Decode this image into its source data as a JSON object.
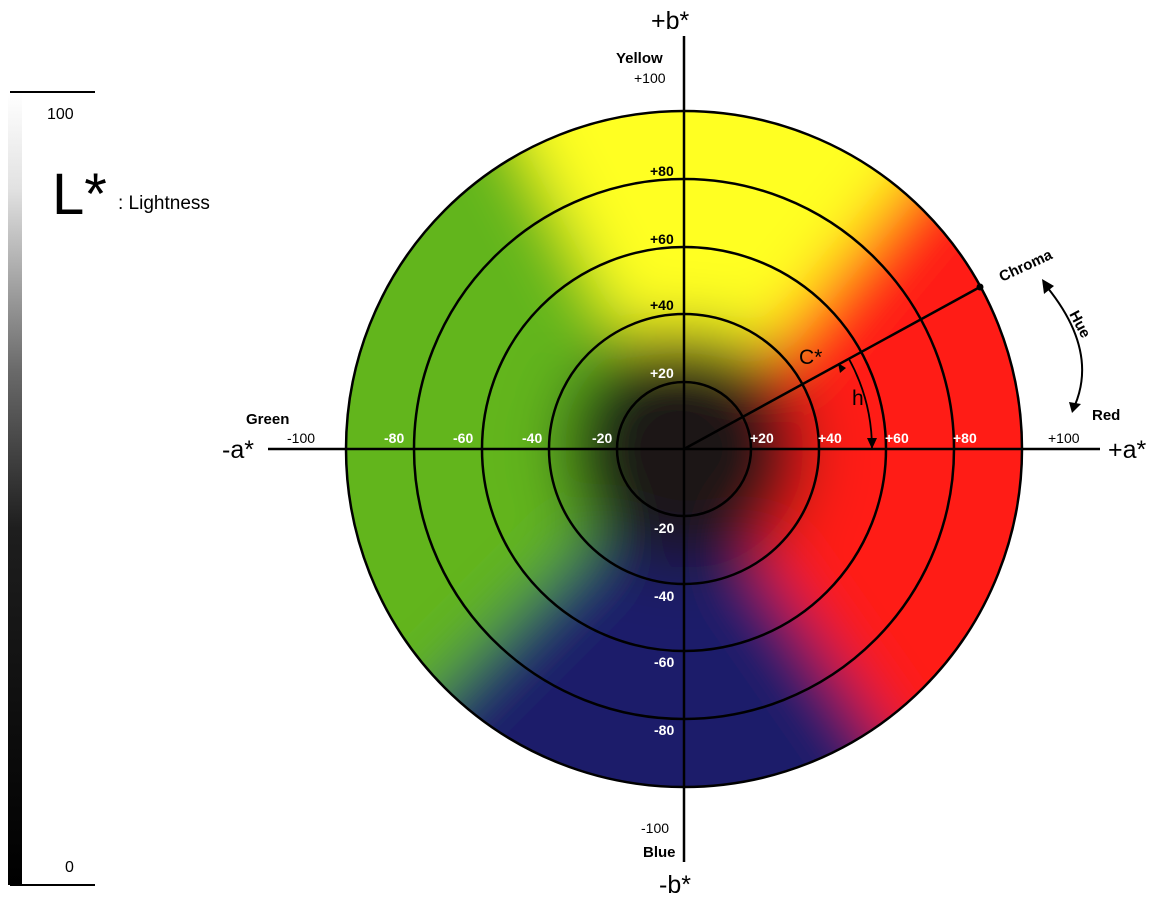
{
  "lightness_scale": {
    "top_value": "100",
    "bottom_value": "0",
    "symbol": "L*",
    "label": ": Lightness"
  },
  "axes": {
    "plus_b": "+b*",
    "minus_b": "-b*",
    "plus_a": "+a*",
    "minus_a": "-a*"
  },
  "color_names": {
    "yellow": "Yellow",
    "blue": "Blue",
    "green": "Green",
    "red": "Red"
  },
  "plus_a_ticks": [
    "+20",
    "+40",
    "+60",
    "+80",
    "+100"
  ],
  "minus_a_ticks": [
    "-20",
    "-40",
    "-60",
    "-80",
    "-100"
  ],
  "plus_b_ticks": [
    "+20",
    "+40",
    "+60",
    "+80",
    "+100"
  ],
  "minus_b_ticks": [
    "-20",
    "-40",
    "-60",
    "-80",
    "-100"
  ],
  "chroma_label": "Chroma",
  "hue_label": "Hue",
  "c_star_label": "C*",
  "h_label": "h",
  "colors": {
    "yellow": "#ffff22",
    "red": "#ff1a14",
    "green": "#62b51e",
    "blue": "#1a1c6a",
    "center": "#1c1814",
    "line": "#000000"
  }
}
